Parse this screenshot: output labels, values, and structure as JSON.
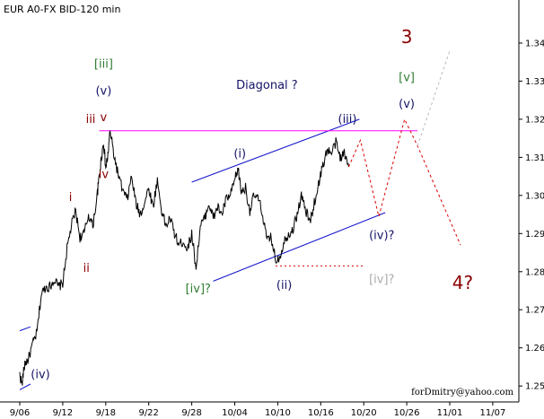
{
  "chart_data": {
    "type": "line",
    "title": "EUR A0-FX BID-120 min",
    "credit": "forDmitry@yahoo.com",
    "x_tick_labels": [
      "9/06",
      "9/12",
      "9/18",
      "9/22",
      "9/28",
      "10/04",
      "10/10",
      "10/16",
      "10/20",
      "10/26",
      "11/01",
      "11/07"
    ],
    "y_ticks": [
      1.25,
      1.26,
      1.27,
      1.28,
      1.29,
      1.3,
      1.31,
      1.32,
      1.33,
      1.34
    ],
    "y_tick_labels": [
      "1.25",
      "1.26",
      "1.27",
      "1.28",
      "1.29",
      "1.30",
      "1.31",
      "1.32",
      "1.33",
      "1.34"
    ],
    "ylim": [
      1.2458,
      1.3513
    ],
    "x_domain": [
      0,
      11.72
    ],
    "grid": false,
    "colors": {
      "price": "#000000",
      "trend_channel": "#1010cc",
      "resistance": "#ff00ff",
      "forecast": "#dd0000",
      "alt_forecast": "#bbbbbb",
      "label_navy": "#141466",
      "label_red": "#8b0000",
      "label_green": "#2e7d32",
      "label_gray": "#aaaaaa"
    },
    "price_anchors": [
      [
        0.0,
        1.253
      ],
      [
        0.05,
        1.2505
      ],
      [
        0.12,
        1.256
      ],
      [
        0.2,
        1.257
      ],
      [
        0.3,
        1.261
      ],
      [
        0.4,
        1.264
      ],
      [
        0.5,
        1.274
      ],
      [
        0.6,
        1.276
      ],
      [
        0.7,
        1.276
      ],
      [
        0.8,
        1.278
      ],
      [
        0.9,
        1.276
      ],
      [
        1.0,
        1.277
      ],
      [
        1.1,
        1.286
      ],
      [
        1.2,
        1.292
      ],
      [
        1.3,
        1.296
      ],
      [
        1.4,
        1.289
      ],
      [
        1.5,
        1.29
      ],
      [
        1.6,
        1.295
      ],
      [
        1.7,
        1.292
      ],
      [
        1.8,
        1.3
      ],
      [
        1.85,
        1.305
      ],
      [
        1.9,
        1.31
      ],
      [
        1.95,
        1.314
      ],
      [
        2.0,
        1.307
      ],
      [
        2.05,
        1.3105
      ],
      [
        2.1,
        1.317
      ],
      [
        2.2,
        1.31
      ],
      [
        2.3,
        1.305
      ],
      [
        2.4,
        1.301
      ],
      [
        2.5,
        1.299
      ],
      [
        2.6,
        1.305
      ],
      [
        2.7,
        1.298
      ],
      [
        2.8,
        1.295
      ],
      [
        2.9,
        1.298
      ],
      [
        3.0,
        1.302
      ],
      [
        3.1,
        1.297
      ],
      [
        3.2,
        1.304
      ],
      [
        3.3,
        1.296
      ],
      [
        3.4,
        1.292
      ],
      [
        3.5,
        1.294
      ],
      [
        3.6,
        1.29
      ],
      [
        3.7,
        1.287
      ],
      [
        3.8,
        1.288
      ],
      [
        3.9,
        1.286
      ],
      [
        4.0,
        1.29
      ],
      [
        4.1,
        1.281
      ],
      [
        4.2,
        1.292
      ],
      [
        4.3,
        1.294
      ],
      [
        4.4,
        1.298
      ],
      [
        4.5,
        1.294
      ],
      [
        4.6,
        1.297
      ],
      [
        4.7,
        1.295
      ],
      [
        4.8,
        1.299
      ],
      [
        4.9,
        1.3
      ],
      [
        5.0,
        1.304
      ],
      [
        5.08,
        1.307
      ],
      [
        5.15,
        1.301
      ],
      [
        5.25,
        1.302
      ],
      [
        5.35,
        1.296
      ],
      [
        5.45,
        1.3
      ],
      [
        5.55,
        1.299
      ],
      [
        5.65,
        1.295
      ],
      [
        5.75,
        1.288
      ],
      [
        5.85,
        1.289
      ],
      [
        5.95,
        1.283
      ],
      [
        6.05,
        1.284
      ],
      [
        6.15,
        1.288
      ],
      [
        6.25,
        1.29
      ],
      [
        6.35,
        1.291
      ],
      [
        6.45,
        1.295
      ],
      [
        6.55,
        1.3
      ],
      [
        6.65,
        1.296
      ],
      [
        6.75,
        1.293
      ],
      [
        6.85,
        1.298
      ],
      [
        6.95,
        1.303
      ],
      [
        7.05,
        1.308
      ],
      [
        7.15,
        1.312
      ],
      [
        7.25,
        1.311
      ],
      [
        7.35,
        1.314
      ],
      [
        7.45,
        1.31
      ],
      [
        7.55,
        1.311
      ],
      [
        7.65,
        1.3075
      ]
    ],
    "trend_channel": {
      "upper": [
        [
          4.0,
          1.3035
        ],
        [
          7.9,
          1.32
        ]
      ],
      "lower": [
        [
          4.5,
          1.2775
        ],
        [
          8.5,
          1.2955
        ]
      ],
      "mini_lower": [
        [
          0.0,
          1.249
        ],
        [
          0.25,
          1.2505
        ]
      ],
      "mini_upper": [
        [
          0.0,
          1.2645
        ],
        [
          0.25,
          1.2655
        ]
      ]
    },
    "resistance_line": [
      [
        1.85,
        1.317
      ],
      [
        9.25,
        1.317
      ]
    ],
    "support_dotted": [
      [
        5.95,
        1.2815
      ],
      [
        8.0,
        1.2815
      ]
    ],
    "forecast_path": [
      [
        7.65,
        1.3075
      ],
      [
        7.92,
        1.3145
      ],
      [
        8.35,
        1.2945
      ],
      [
        8.95,
        1.32
      ],
      [
        9.25,
        1.313
      ],
      [
        10.25,
        1.287
      ]
    ],
    "alt_forecast_path": [
      [
        9.25,
        1.313
      ],
      [
        10.0,
        1.338
      ]
    ],
    "annotations": [
      {
        "text": "Diagonal ?",
        "x": 5.75,
        "y": 1.328,
        "color": "label_navy",
        "size": "normal"
      },
      {
        "text": "3",
        "x": 9.0,
        "y": 1.34,
        "color": "label_red",
        "size": "large"
      },
      {
        "text": "[v]",
        "x": 9.0,
        "y": 1.33,
        "color": "label_green",
        "size": "normal"
      },
      {
        "text": "(v)",
        "x": 9.0,
        "y": 1.323,
        "color": "label_navy",
        "size": "normal"
      },
      {
        "text": "(iii)",
        "x": 7.62,
        "y": 1.319,
        "color": "label_navy",
        "size": "normal"
      },
      {
        "text": "(i)",
        "x": 5.12,
        "y": 1.31,
        "color": "label_navy",
        "size": "normal"
      },
      {
        "text": "(iv)?",
        "x": 8.42,
        "y": 1.2885,
        "color": "label_navy",
        "size": "normal"
      },
      {
        "text": "(ii)",
        "x": 6.15,
        "y": 1.2755,
        "color": "label_navy",
        "size": "normal"
      },
      {
        "text": "[iv]?",
        "x": 8.42,
        "y": 1.277,
        "color": "label_gray",
        "size": "normal"
      },
      {
        "text": "[iv]?",
        "x": 4.15,
        "y": 1.2745,
        "color": "label_green",
        "size": "normal"
      },
      {
        "text": "4?",
        "x": 10.3,
        "y": 1.2755,
        "color": "label_red",
        "size": "large"
      },
      {
        "text": "[iii]",
        "x": 1.95,
        "y": 1.3335,
        "color": "label_green",
        "size": "normal"
      },
      {
        "text": "(v)",
        "x": 1.95,
        "y": 1.3265,
        "color": "label_navy",
        "size": "normal"
      },
      {
        "text": "iii",
        "x": 1.65,
        "y": 1.319,
        "color": "label_red",
        "size": "normal"
      },
      {
        "text": "v",
        "x": 1.95,
        "y": 1.3195,
        "color": "label_red",
        "size": "normal"
      },
      {
        "text": "iv",
        "x": 1.95,
        "y": 1.3045,
        "color": "label_red",
        "size": "normal"
      },
      {
        "text": "i",
        "x": 1.18,
        "y": 1.2985,
        "color": "label_red",
        "size": "normal"
      },
      {
        "text": "ii",
        "x": 1.55,
        "y": 1.28,
        "color": "label_red",
        "size": "normal"
      },
      {
        "text": "(iv)",
        "x": 0.48,
        "y": 1.252,
        "color": "label_navy",
        "size": "normal"
      }
    ]
  }
}
